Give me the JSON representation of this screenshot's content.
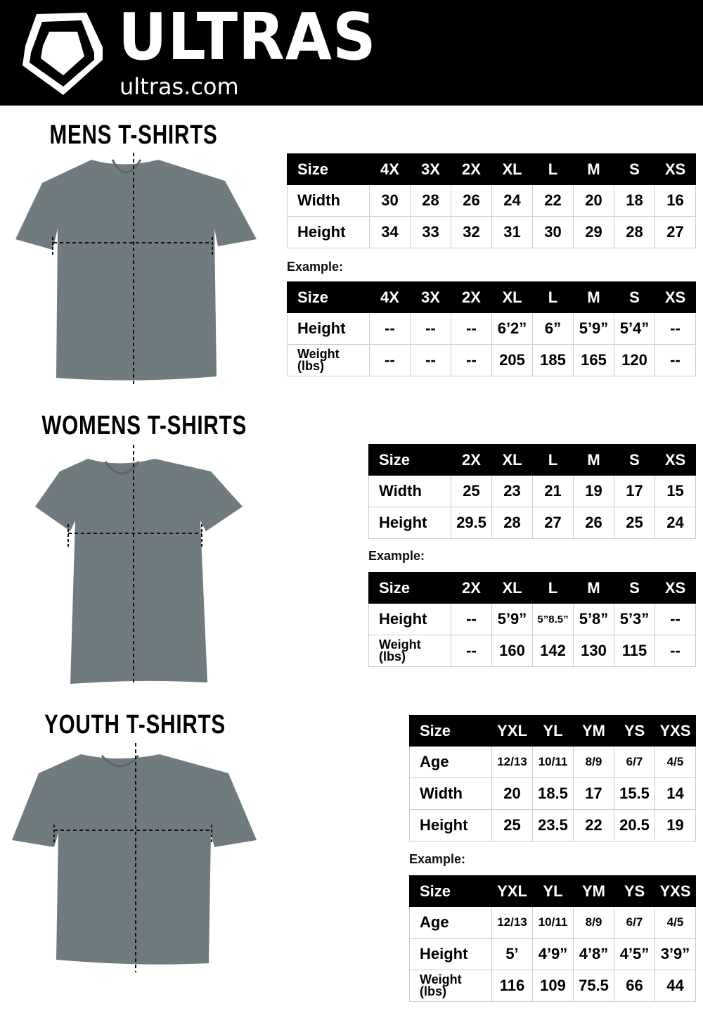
{
  "header": {
    "brand": "ULTRAS",
    "domain": "ultras.com",
    "background": "#000000"
  },
  "sections": [
    {
      "title": "MENS T-SHIRTS",
      "example_label": "Example:",
      "sizes": {
        "header": [
          "Size",
          "4X",
          "3X",
          "2X",
          "XL",
          "L",
          "M",
          "S",
          "XS"
        ],
        "rows": [
          {
            "label": "Width",
            "values": [
              "30",
              "28",
              "26",
              "24",
              "22",
              "20",
              "18",
              "16"
            ]
          },
          {
            "label": "Height",
            "values": [
              "34",
              "33",
              "32",
              "31",
              "30",
              "29",
              "28",
              "27"
            ]
          }
        ]
      },
      "example": {
        "header": [
          "Size",
          "4X",
          "3X",
          "2X",
          "XL",
          "L",
          "M",
          "S",
          "XS"
        ],
        "rows": [
          {
            "label": "Height",
            "values": [
              "--",
              "--",
              "--",
              "6’2”",
              "6”",
              "5’9”",
              "5’4”",
              "--"
            ]
          },
          {
            "label": "Weight (lbs)",
            "values": [
              "--",
              "--",
              "--",
              "205",
              "185",
              "165",
              "120",
              "--"
            ]
          }
        ]
      }
    },
    {
      "title": "WOMENS T-SHIRTS",
      "example_label": "Example:",
      "sizes": {
        "header": [
          "Size",
          "2X",
          "XL",
          "L",
          "M",
          "S",
          "XS"
        ],
        "rows": [
          {
            "label": "Width",
            "values": [
              "25",
              "23",
              "21",
              "19",
              "17",
              "15"
            ]
          },
          {
            "label": "Height",
            "values": [
              "29.5",
              "28",
              "27",
              "26",
              "25",
              "24"
            ]
          }
        ]
      },
      "example": {
        "header": [
          "Size",
          "2X",
          "XL",
          "L",
          "M",
          "S",
          "XS"
        ],
        "rows": [
          {
            "label": "Height",
            "values": [
              "--",
              "5’9”",
              "5”8.5”",
              "5’8”",
              "5’3”",
              "--"
            ]
          },
          {
            "label": "Weight (lbs)",
            "values": [
              "--",
              "160",
              "142",
              "130",
              "115",
              "--"
            ]
          }
        ]
      }
    },
    {
      "title": "YOUTH T-SHIRTS",
      "example_label": "Example:",
      "sizes": {
        "header": [
          "Size",
          "YXL",
          "YL",
          "YM",
          "YS",
          "YXS"
        ],
        "rows": [
          {
            "label": "Age",
            "values": [
              "12/13",
              "10/11",
              "8/9",
              "6/7",
              "4/5"
            ]
          },
          {
            "label": "Width",
            "values": [
              "20",
              "18.5",
              "17",
              "15.5",
              "14"
            ]
          },
          {
            "label": "Height",
            "values": [
              "25",
              "23.5",
              "22",
              "20.5",
              "19"
            ]
          }
        ]
      },
      "example": {
        "header": [
          "Size",
          "YXL",
          "YL",
          "YM",
          "YS",
          "YXS"
        ],
        "rows": [
          {
            "label": "Age",
            "values": [
              "12/13",
              "10/11",
              "8/9",
              "6/7",
              "4/5"
            ]
          },
          {
            "label": "Height",
            "values": [
              "5’",
              "4’9”",
              "4’8”",
              "4’5”",
              "3’9”"
            ]
          },
          {
            "label": "Weight (lbs)",
            "values": [
              "116",
              "109",
              "75.5",
              "66",
              "44"
            ]
          }
        ]
      }
    }
  ]
}
